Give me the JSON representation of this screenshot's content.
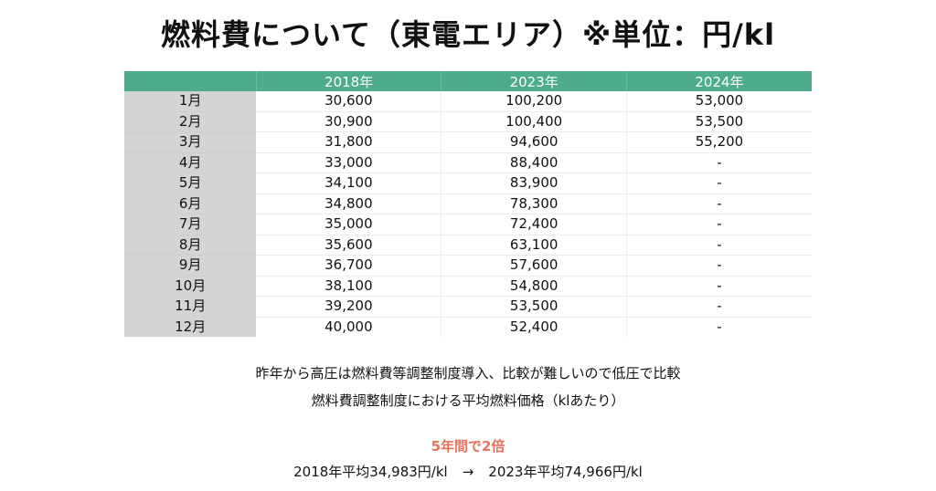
{
  "title": "燃料費について（東電エリア）※単位：円/kl",
  "table": {
    "headers": [
      "",
      "2018年",
      "2023年",
      "2024年"
    ],
    "rows": [
      {
        "month": "1月",
        "y2018": "30,600",
        "y2023": "100,200",
        "y2024": "53,000"
      },
      {
        "month": "2月",
        "y2018": "30,900",
        "y2023": "100,400",
        "y2024": "53,500"
      },
      {
        "month": "3月",
        "y2018": "31,800",
        "y2023": "94,600",
        "y2024": "55,200"
      },
      {
        "month": "4月",
        "y2018": "33,000",
        "y2023": "88,400",
        "y2024": "-"
      },
      {
        "month": "5月",
        "y2018": "34,100",
        "y2023": "83,900",
        "y2024": "-"
      },
      {
        "month": "6月",
        "y2018": "34,800",
        "y2023": "78,300",
        "y2024": "-"
      },
      {
        "month": "7月",
        "y2018": "35,000",
        "y2023": "72,400",
        "y2024": "-"
      },
      {
        "month": "8月",
        "y2018": "35,600",
        "y2023": "63,100",
        "y2024": "-"
      },
      {
        "month": "9月",
        "y2018": "36,700",
        "y2023": "57,600",
        "y2024": "-"
      },
      {
        "month": "10月",
        "y2018": "38,100",
        "y2023": "54,800",
        "y2024": "-"
      },
      {
        "month": "11月",
        "y2018": "39,200",
        "y2023": "53,500",
        "y2024": "-"
      },
      {
        "month": "12月",
        "y2018": "40,000",
        "y2023": "52,400",
        "y2024": "-"
      }
    ]
  },
  "notes": {
    "line1": "昨年から高圧は燃料費等調整制度導入、比較が難しいので低圧で比較",
    "line2": "燃料費調整制度における平均燃料価格（klあたり）"
  },
  "highlight": {
    "text": "5年間で2倍",
    "color": "#e8735a"
  },
  "summary": {
    "left": "2018年平均34,983円/kl",
    "arrow": "→",
    "right": "2023年平均74,966円/kl"
  },
  "colors": {
    "header_bg": "#4fab8d",
    "month_bg": "#d4d4d4"
  }
}
